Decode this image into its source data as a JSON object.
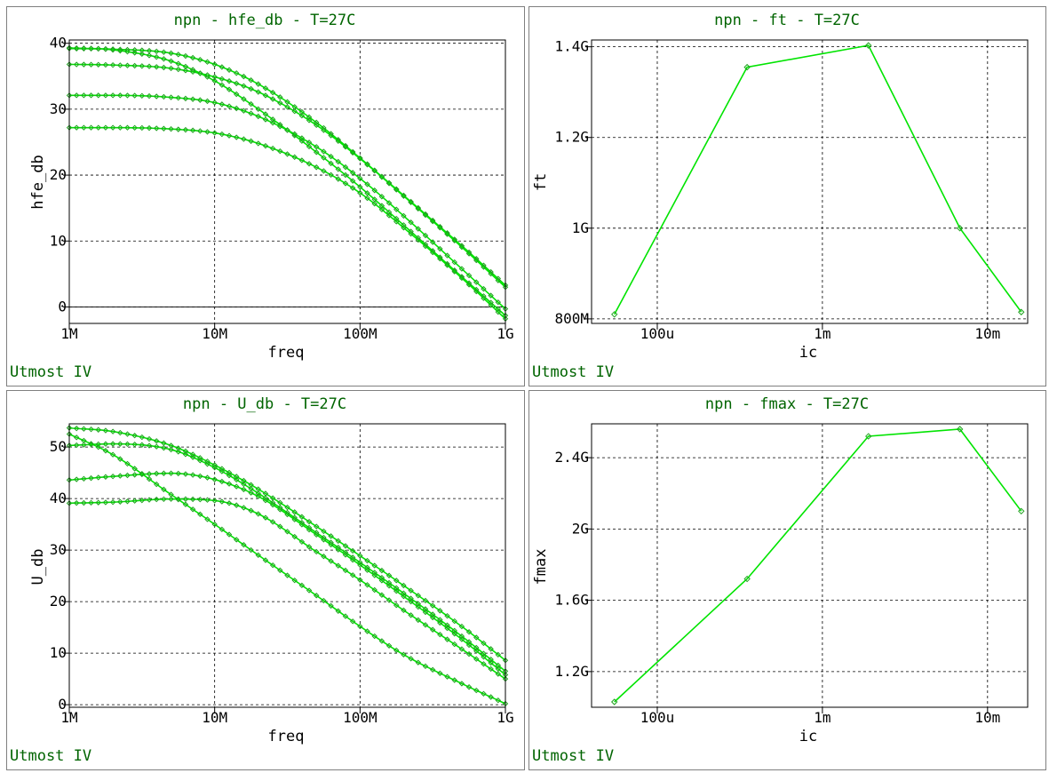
{
  "footer_text": "Utmost IV",
  "chart_data": [
    {
      "type": "line",
      "title": "npn - hfe_db - T=27C",
      "xlabel": "freq",
      "ylabel": "hfe_db",
      "xscale": "log",
      "xlim": [
        1000000.0,
        1000000000.0
      ],
      "ylim": [
        -2.5,
        40.5
      ],
      "xticks": [
        {
          "v": 1000000.0,
          "label": "1M"
        },
        {
          "v": 10000000.0,
          "label": "10M"
        },
        {
          "v": 100000000.0,
          "label": "100M"
        },
        {
          "v": 1000000000.0,
          "label": "1G"
        }
      ],
      "yticks": [
        {
          "v": 0,
          "label": "0"
        },
        {
          "v": 10,
          "label": "10"
        },
        {
          "v": 20,
          "label": "20"
        },
        {
          "v": 30,
          "label": "30"
        },
        {
          "v": 40,
          "label": "40"
        }
      ],
      "zero_line": true,
      "grid": true,
      "line_color": "#00e400",
      "x": [
        1000000.0,
        2000000.0,
        5000000.0,
        10000000.0,
        20000000.0,
        50000000.0,
        100000000.0,
        200000000.0,
        500000000.0,
        1000000000.0
      ],
      "series": [
        {
          "values": [
            39.2,
            39.1,
            38.5,
            36.8,
            33.8,
            28.0,
            22.6,
            16.9,
            9.3,
            3.3
          ]
        },
        {
          "values": [
            39.3,
            39.0,
            37.3,
            34.3,
            30.0,
            23.5,
            18.2,
            12.4,
            4.6,
            -1.3
          ]
        },
        {
          "values": [
            36.8,
            36.7,
            36.2,
            34.9,
            32.6,
            27.6,
            22.5,
            16.8,
            9.1,
            3.0
          ]
        },
        {
          "values": [
            32.1,
            32.1,
            31.8,
            31.0,
            28.9,
            24.3,
            19.5,
            13.8,
            5.8,
            -0.3
          ]
        },
        {
          "values": [
            27.2,
            27.2,
            27.0,
            26.4,
            24.8,
            21.2,
            17.3,
            12.0,
            4.4,
            -1.8
          ]
        }
      ]
    },
    {
      "type": "line",
      "title": "npn - ft - T=27C",
      "xlabel": "ic",
      "ylabel": "ft",
      "xscale": "log",
      "xlim": [
        4e-05,
        0.0175
      ],
      "ylim": [
        790000000.0,
        1415000000.0
      ],
      "xticks": [
        {
          "v": 0.0001,
          "label": "100u"
        },
        {
          "v": 0.001,
          "label": "1m"
        },
        {
          "v": 0.01,
          "label": "10m"
        }
      ],
      "yticks": [
        {
          "v": 800000000.0,
          "label": "800M"
        },
        {
          "v": 1000000000.0,
          "label": "1G"
        },
        {
          "v": 1200000000.0,
          "label": "1.2G"
        },
        {
          "v": 1400000000.0,
          "label": "1.4G"
        }
      ],
      "grid": true,
      "line_color": "#00e400",
      "x": [
        5.5e-05,
        0.00035,
        0.0019,
        0.0068,
        0.016
      ],
      "series": [
        {
          "values": [
            810000000.0,
            1355000000.0,
            1403000000.0,
            1000000000.0,
            815000000.0
          ]
        }
      ]
    },
    {
      "type": "line",
      "title": "npn - U_db - T=27C",
      "xlabel": "freq",
      "ylabel": "U_db",
      "xscale": "log",
      "xlim": [
        1000000.0,
        1000000000.0
      ],
      "ylim": [
        -0.5,
        54.5
      ],
      "xticks": [
        {
          "v": 1000000.0,
          "label": "1M"
        },
        {
          "v": 10000000.0,
          "label": "10M"
        },
        {
          "v": 100000000.0,
          "label": "100M"
        },
        {
          "v": 1000000000.0,
          "label": "1G"
        }
      ],
      "yticks": [
        {
          "v": 0,
          "label": "0"
        },
        {
          "v": 10,
          "label": "10"
        },
        {
          "v": 20,
          "label": "20"
        },
        {
          "v": 30,
          "label": "30"
        },
        {
          "v": 40,
          "label": "40"
        },
        {
          "v": 50,
          "label": "50"
        }
      ],
      "grid": true,
      "line_color": "#00e400",
      "x": [
        1000000.0,
        2000000.0,
        5000000.0,
        10000000.0,
        20000000.0,
        50000000.0,
        100000000.0,
        200000000.0,
        500000000.0,
        1000000000.0
      ],
      "series": [
        {
          "values": [
            53.7,
            53.0,
            50.3,
            46.5,
            41.8,
            34.6,
            28.9,
            23.1,
            15.2,
            8.6
          ]
        },
        {
          "values": [
            52.5,
            48.5,
            40.8,
            35.0,
            29.0,
            21.2,
            15.2,
            9.7,
            4.1,
            0.2
          ]
        },
        {
          "values": [
            50.3,
            50.6,
            49.5,
            46.0,
            41.0,
            33.4,
            27.6,
            21.6,
            13.3,
            6.5
          ]
        },
        {
          "values": [
            43.6,
            44.3,
            44.9,
            43.7,
            40.4,
            33.0,
            27.1,
            21.0,
            12.7,
            5.8
          ]
        },
        {
          "values": [
            39.1,
            39.3,
            39.9,
            39.6,
            37.0,
            29.7,
            24.2,
            18.3,
            10.8,
            5.0
          ]
        }
      ]
    },
    {
      "type": "line",
      "title": "npn - fmax - T=27C",
      "xlabel": "ic",
      "ylabel": "fmax",
      "xscale": "log",
      "xlim": [
        4e-05,
        0.0175
      ],
      "ylim": [
        1000000000.0,
        2590000000.0
      ],
      "xticks": [
        {
          "v": 0.0001,
          "label": "100u"
        },
        {
          "v": 0.001,
          "label": "1m"
        },
        {
          "v": 0.01,
          "label": "10m"
        }
      ],
      "yticks": [
        {
          "v": 1200000000.0,
          "label": "1.2G"
        },
        {
          "v": 1600000000.0,
          "label": "1.6G"
        },
        {
          "v": 2000000000.0,
          "label": "2G"
        },
        {
          "v": 2400000000.0,
          "label": "2.4G"
        }
      ],
      "grid": true,
      "line_color": "#00e400",
      "x": [
        5.5e-05,
        0.00035,
        0.0019,
        0.0068,
        0.016
      ],
      "series": [
        {
          "values": [
            1030000000.0,
            1720000000.0,
            2520000000.0,
            2560000000.0,
            2100000000.0
          ]
        }
      ]
    }
  ]
}
